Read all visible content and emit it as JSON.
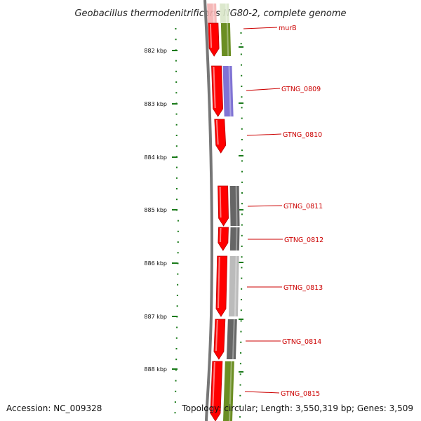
{
  "title": "Geobacillus thermodenitrificans NG80-2, complete genome",
  "footer": {
    "accession": "Accession: NC_009328",
    "topology": "Topology: circular; Length: 3,550,319 bp; Genes: 3,509"
  },
  "scale": {
    "unit": "kbp",
    "ticks": [
      "882 kbp",
      "883 kbp",
      "884 kbp",
      "885 kbp",
      "886 kbp",
      "887 kbp",
      "888 kbp"
    ]
  },
  "genes": [
    {
      "label": "murB",
      "color": "#cc0000"
    },
    {
      "label": "GTNG_0809",
      "color": "#cc0000"
    },
    {
      "label": "GTNG_0810",
      "color": "#cc0000"
    },
    {
      "label": "GTNG_0811",
      "color": "#cc0000"
    },
    {
      "label": "GTNG_0812",
      "color": "#cc0000"
    },
    {
      "label": "GTNG_0813",
      "color": "#cc0000"
    },
    {
      "label": "GTNG_0814",
      "color": "#cc0000"
    },
    {
      "label": "GTNG_0815",
      "color": "#cc0000"
    }
  ],
  "colors": {
    "gene_arrow": "#ff0000",
    "backbone": "#777777",
    "tick": "#1a7a1a",
    "label": "#cc0000",
    "cog_green": "#6b8e23",
    "cog_blue": "#6a5acd",
    "cog_dark_gray": "#666666",
    "cog_light_gray": "#bbbbbb"
  }
}
